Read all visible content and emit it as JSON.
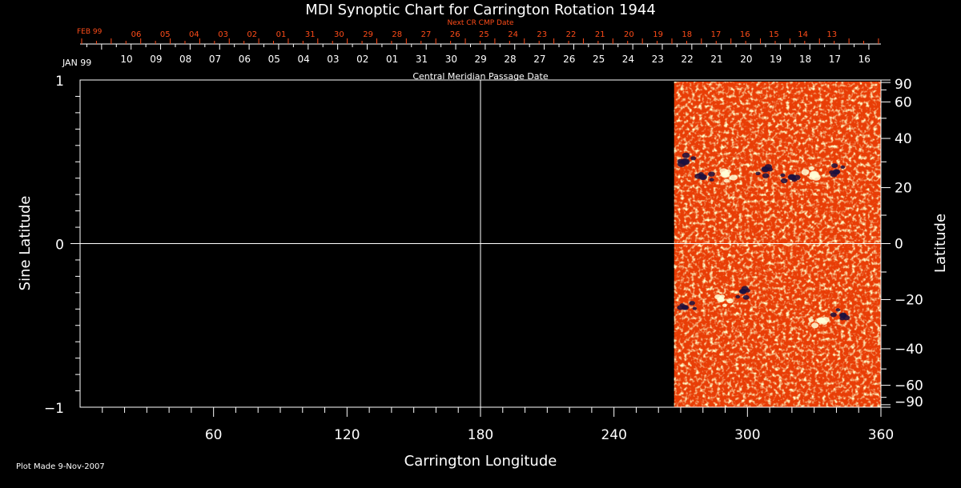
{
  "chart_data": {
    "type": "heatmap",
    "title": "MDI Synoptic Chart for Carrington Rotation 1944",
    "xlabel": "Carrington Longitude",
    "ylabel_left": "Sine Latitude",
    "ylabel_right": "Latitude",
    "xlim": [
      0,
      360
    ],
    "ylim": [
      -1,
      1
    ],
    "x_ticks": [
      60,
      120,
      180,
      240,
      300,
      360
    ],
    "y_ticks_left": [
      1,
      0,
      -1
    ],
    "y_ticks_left_labels": [
      "1",
      "0",
      "−1"
    ],
    "lat_ticks": [
      90,
      60,
      40,
      20,
      0,
      -20,
      -40,
      -60,
      -90
    ],
    "lat_tick_labels": [
      "90",
      "60",
      "40",
      "20",
      "0",
      "−20",
      "−40",
      "−60",
      "−90"
    ],
    "grid_lines": {
      "x": [
        180
      ],
      "y": [
        0
      ]
    },
    "data_coverage_longitude": [
      267,
      360
    ],
    "active_regions": [
      {
        "lon": 272,
        "lat": 30,
        "polarity": "negative",
        "strength": 0.9
      },
      {
        "lon": 280,
        "lat": 24,
        "polarity": "negative",
        "strength": 0.7
      },
      {
        "lon": 290,
        "lat": 25,
        "polarity": "positive",
        "strength": 0.9
      },
      {
        "lon": 308,
        "lat": 27,
        "polarity": "negative",
        "strength": 0.7
      },
      {
        "lon": 320,
        "lat": 24,
        "polarity": "negative",
        "strength": 0.7
      },
      {
        "lon": 330,
        "lat": 25,
        "polarity": "positive",
        "strength": 1.0
      },
      {
        "lon": 340,
        "lat": 26,
        "polarity": "negative",
        "strength": 0.6
      },
      {
        "lon": 272,
        "lat": -23,
        "polarity": "negative",
        "strength": 0.5
      },
      {
        "lon": 288,
        "lat": -20,
        "polarity": "positive",
        "strength": 0.6
      },
      {
        "lon": 298,
        "lat": -17,
        "polarity": "negative",
        "strength": 0.6
      },
      {
        "lon": 333,
        "lat": -28,
        "polarity": "positive",
        "strength": 0.8
      },
      {
        "lon": 343,
        "lat": -26,
        "polarity": "negative",
        "strength": 0.6
      }
    ],
    "top_axis_lower": {
      "month_label": "JAN 99",
      "labels": [
        "10",
        "09",
        "08",
        "07",
        "06",
        "05",
        "04",
        "03",
        "02",
        "01",
        "31",
        "30",
        "29",
        "28",
        "27",
        "26",
        "25",
        "24",
        "23",
        "22",
        "21",
        "20",
        "19",
        "18",
        "17",
        "16"
      ],
      "title": "Central Meridian Passage Date"
    },
    "top_axis_upper": {
      "title": "Next CR CMP Date",
      "month_label": "FEB 99",
      "labels": [
        "06",
        "05",
        "04",
        "03",
        "02",
        "01",
        "31",
        "30",
        "29",
        "28",
        "27",
        "26",
        "25",
        "24",
        "23",
        "22",
        "21",
        "20",
        "19",
        "18",
        "17",
        "16",
        "15",
        "14",
        "13"
      ]
    },
    "colors": {
      "background": "#000000",
      "axis": "#ffffff",
      "upper_axis": "#ff4c19",
      "field_base": "#e83d06",
      "positive": "#ffffd8",
      "negative": "#1a1040"
    }
  },
  "footer": {
    "plot_made": "Plot Made  9-Nov-2007"
  }
}
